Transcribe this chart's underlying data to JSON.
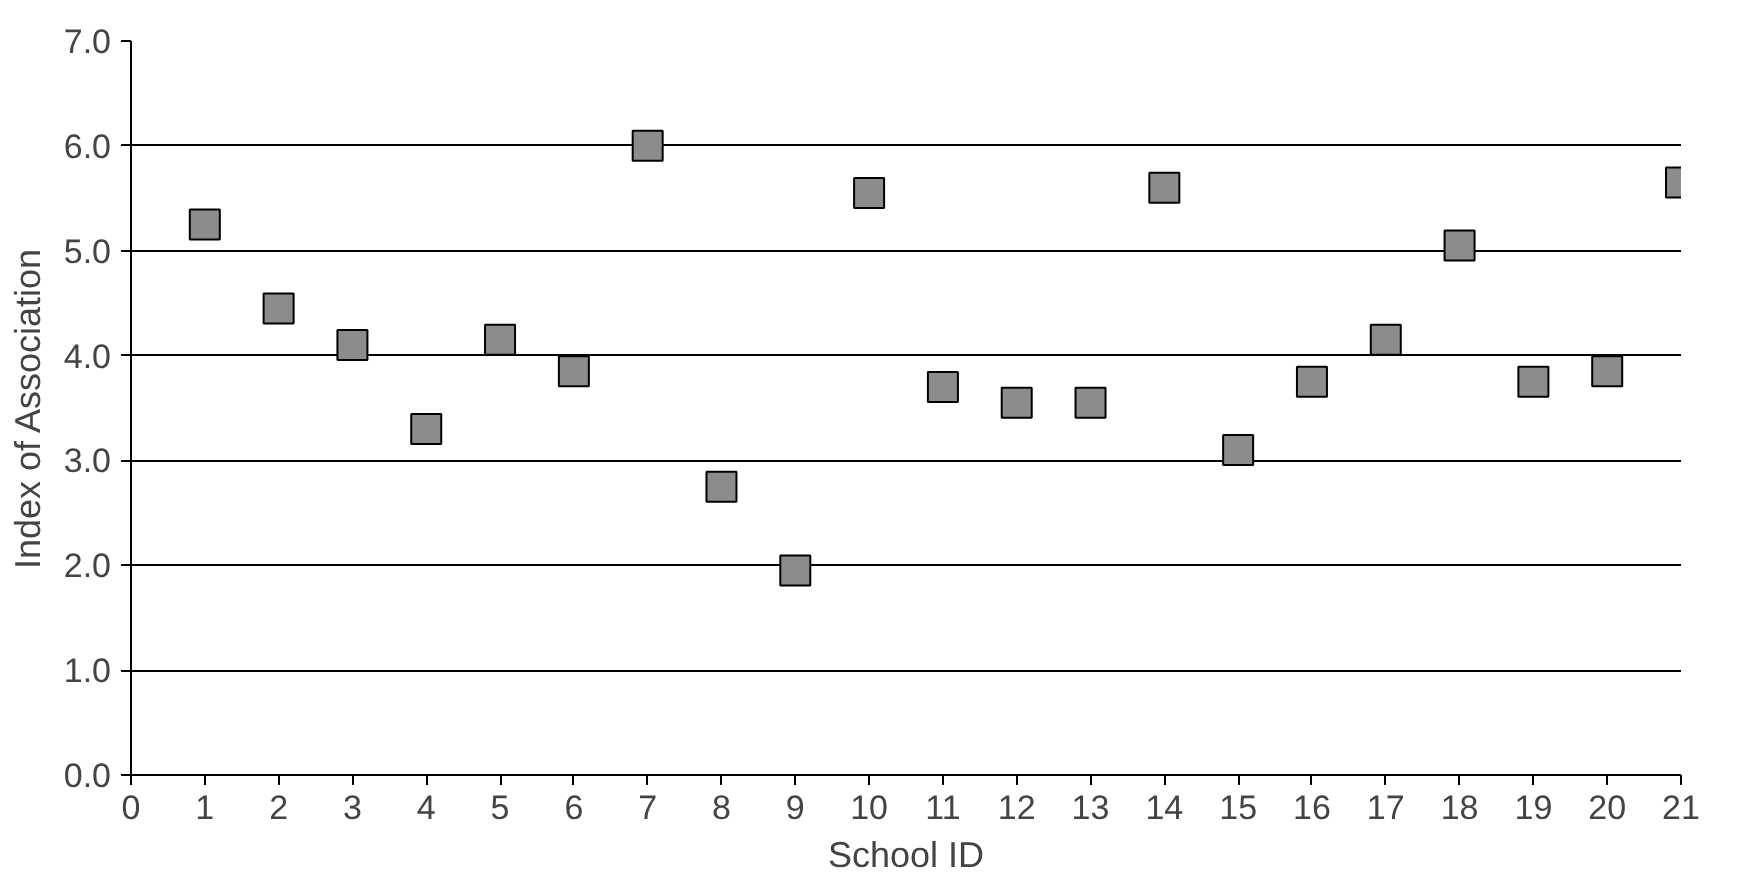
{
  "chart_data": {
    "type": "scatter",
    "xlabel": "School ID",
    "ylabel": "Index of Association",
    "x": [
      1,
      2,
      3,
      4,
      5,
      6,
      7,
      8,
      9,
      10,
      11,
      12,
      13,
      14,
      15,
      16,
      17,
      18,
      19,
      20,
      21
    ],
    "series": [
      {
        "color": "#8c8c8c",
        "values": [
          5.25,
          4.45,
          4.1,
          3.3,
          4.15,
          3.85,
          6.0,
          2.75,
          1.95,
          5.55,
          3.7,
          3.55,
          3.55,
          5.6,
          3.1,
          3.75,
          4.15,
          5.05,
          3.75,
          3.85,
          5.65
        ]
      }
    ],
    "xlim": [
      0,
      21
    ],
    "xticks": [
      0,
      1,
      2,
      3,
      4,
      5,
      6,
      7,
      8,
      9,
      10,
      11,
      12,
      13,
      14,
      15,
      16,
      17,
      18,
      19,
      20,
      21
    ],
    "ylim": [
      0,
      7
    ],
    "yticks": [
      {
        "value": 0,
        "label": "0.0"
      },
      {
        "value": 1,
        "label": "1.0"
      },
      {
        "value": 2,
        "label": "2.0"
      },
      {
        "value": 3,
        "label": "3.0"
      },
      {
        "value": 4,
        "label": "4.0"
      },
      {
        "value": 5,
        "label": "5.0"
      },
      {
        "value": 6,
        "label": "6.0"
      },
      {
        "value": 7,
        "label": "7.0"
      }
    ],
    "grid": "y",
    "marker": "square"
  }
}
